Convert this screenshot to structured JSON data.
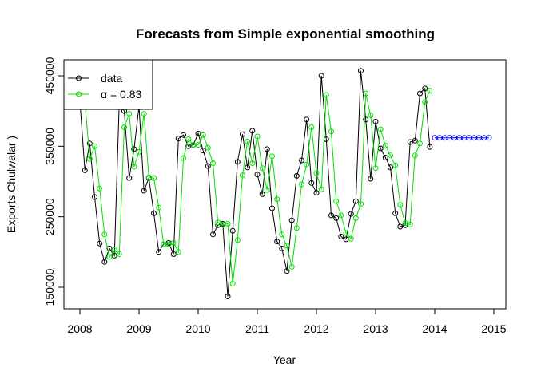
{
  "chart_data": {
    "type": "line",
    "title": "Forecasts from Simple exponential smoothing",
    "xlabel": "Year",
    "ylabel": "Exports Chulwalar  )",
    "xlim": [
      2008,
      2015
    ],
    "ylim": [
      150000,
      450000
    ],
    "x_ticks": [
      2008,
      2009,
      2010,
      2011,
      2012,
      2013,
      2014,
      2015
    ],
    "y_ticks": [
      150000,
      250000,
      350000,
      450000
    ],
    "x_tick_labels": [
      "2008",
      "2009",
      "2010",
      "2011",
      "2012",
      "2013",
      "2014",
      "2015"
    ],
    "y_tick_labels": [
      "150000",
      "250000",
      "350000",
      "450000"
    ],
    "grid": false,
    "legend": {
      "position": "top-left",
      "entries": [
        {
          "label": "data",
          "color": "#000000"
        },
        {
          "label": "α = 0.83",
          "color": "#00e000"
        }
      ]
    },
    "x_start": 2008,
    "frequency": 12,
    "series": [
      {
        "name": "data",
        "color": "#000000",
        "values": [
          414000,
          316000,
          354000,
          278000,
          212000,
          186000,
          205000,
          195000,
          414000,
          400000,
          305000,
          346000,
          407000,
          287000,
          305000,
          255000,
          200000,
          211000,
          213000,
          197000,
          361000,
          366000,
          350000,
          352000,
          368000,
          344000,
          322000,
          225000,
          238000,
          240000,
          137000,
          230000,
          328000,
          367000,
          320000,
          372000,
          310000,
          282000,
          346000,
          262000,
          215000,
          205000,
          173000,
          245000,
          308000,
          330000,
          388000,
          298000,
          284000,
          450000,
          360000,
          252000,
          248000,
          222000,
          218000,
          254000,
          272000,
          457000,
          388000,
          304000,
          385000,
          347000,
          334000,
          320000,
          255000,
          236000,
          238000,
          356000,
          358000,
          425000,
          432000,
          349000
        ]
      },
      {
        "name": "α = 0.83",
        "color": "#00e000",
        "values": [
          null,
          414000,
          332000,
          350000,
          290000,
          225000,
          193000,
          203000,
          197000,
          377000,
          396000,
          321000,
          342000,
          396000,
          306000,
          305000,
          263000,
          211000,
          211000,
          213000,
          200000,
          333000,
          360000,
          352000,
          352000,
          366000,
          348000,
          326000,
          242000,
          239000,
          240000,
          155000,
          217000,
          309000,
          357000,
          326000,
          364000,
          319000,
          288000,
          336000,
          275000,
          225000,
          209000,
          179000,
          234000,
          296000,
          324000,
          377000,
          312000,
          289000,
          423000,
          371000,
          272000,
          252000,
          227000,
          219000,
          248000,
          268000,
          425000,
          394000,
          319000,
          374000,
          351000,
          337000,
          323000,
          267000,
          241000,
          239000,
          337000,
          354000,
          413000,
          429000
        ]
      },
      {
        "name": "",
        "color": "#0000ff",
        "x": [
          2014.0,
          2014.083,
          2014.167,
          2014.25,
          2014.333,
          2014.417,
          2014.5,
          2014.583,
          2014.667,
          2014.75,
          2014.833,
          2014.917
        ],
        "values": [
          362000,
          362000,
          362000,
          362000,
          362000,
          362000,
          362000,
          362000,
          362000,
          362000,
          362000,
          362000
        ]
      }
    ]
  }
}
